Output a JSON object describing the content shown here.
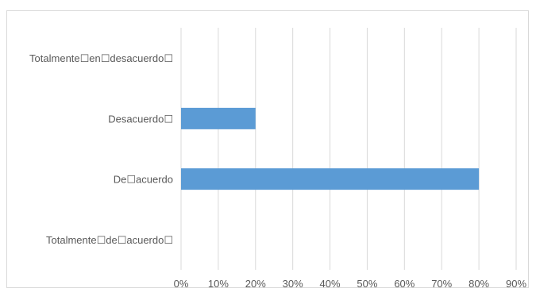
{
  "chart_data": {
    "type": "bar",
    "orientation": "horizontal",
    "categories": [
      "Totalmente☐en☐desacuerdo☐",
      "Desacuerdo☐",
      "De☐acuerdo",
      "Totalmente☐de☐acuerdo☐"
    ],
    "values": [
      0,
      20,
      80,
      0
    ],
    "xlim": [
      0,
      90
    ],
    "xticks": [
      0,
      10,
      20,
      30,
      40,
      50,
      60,
      70,
      80,
      90
    ],
    "xtick_labels": [
      "0%",
      "10%",
      "20%",
      "30%",
      "40%",
      "50%",
      "60%",
      "70%",
      "80%",
      "90%"
    ],
    "title": "",
    "xlabel": "",
    "ylabel": "",
    "grid": "vertical",
    "legend": "none",
    "colors": {
      "bar": "#5b9bd5",
      "grid": "#d9d9d9",
      "text": "#595959",
      "border": "#d9d9d9"
    }
  }
}
